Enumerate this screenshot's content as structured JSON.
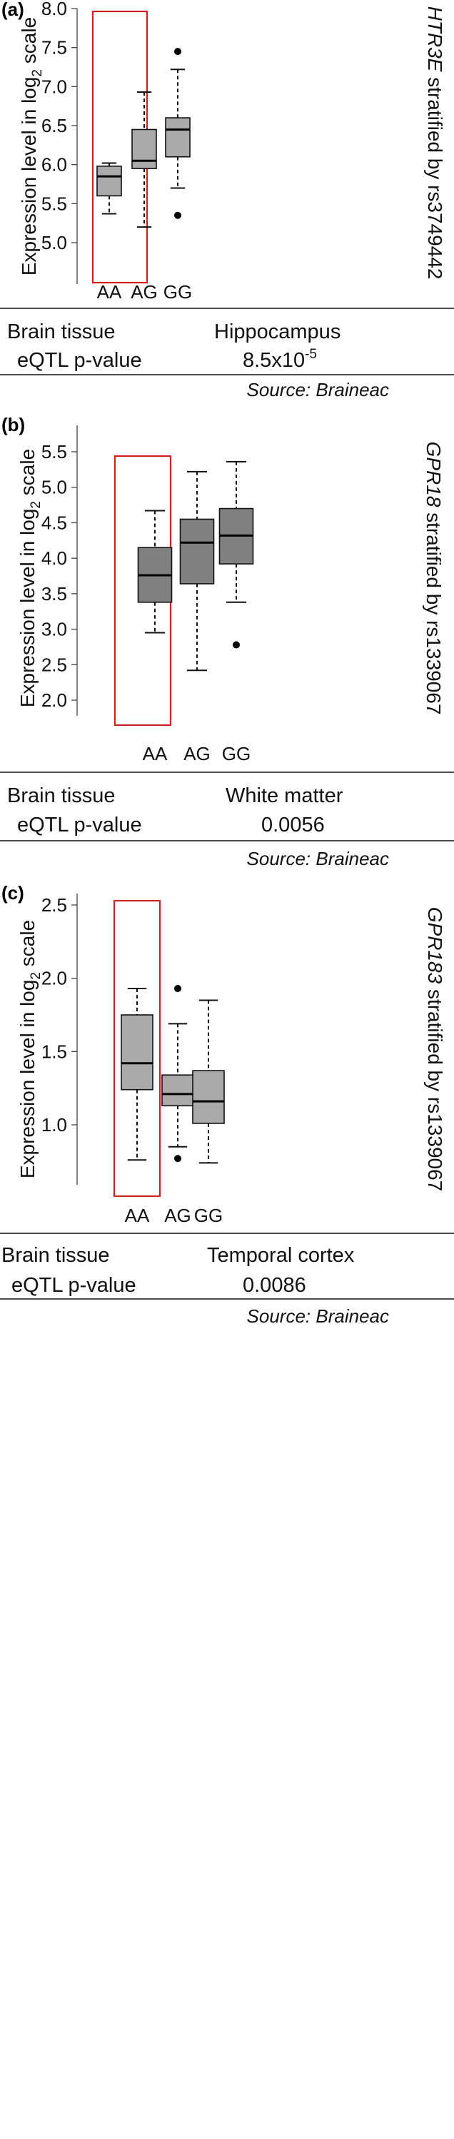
{
  "source_note": "Source: Braineac",
  "ylabel_prefix": "Expression level in log",
  "ylabel_sub": "2",
  "ylabel_suffix": " scale",
  "panels": [
    {
      "letter": "(a)",
      "gene": "HTR3E",
      "side_suffix": " stratified by rs3749442",
      "tissue_label": "Brain tissue",
      "tissue_value": "Hippocampus",
      "pval_label": "eQTL p-value",
      "pval_mantissa": "8.5x10",
      "pval_exponent": "-5",
      "box_color": "#aaaaaa",
      "highlight_color": "#cc2222",
      "chart_data": {
        "type": "box",
        "categories": [
          "AA",
          "AG",
          "GG"
        ],
        "ylim": [
          5.0,
          8.0
        ],
        "yticks": [
          "5.0",
          "5.5",
          "6.0",
          "6.5",
          "7.0",
          "7.5",
          "8.0"
        ],
        "highlighted_category": "AA",
        "boxes": [
          {
            "category": "AA",
            "whisker_low": 5.37,
            "q1": 5.6,
            "median": 5.85,
            "q3": 5.98,
            "whisker_high": 6.02,
            "outliers": []
          },
          {
            "category": "AG",
            "whisker_low": 5.2,
            "q1": 5.95,
            "median": 6.05,
            "q3": 6.45,
            "whisker_high": 6.93,
            "outliers": []
          },
          {
            "category": "GG",
            "whisker_low": 5.7,
            "q1": 6.1,
            "median": 6.45,
            "q3": 6.6,
            "whisker_high": 7.22,
            "outliers": [
              7.45,
              5.35
            ]
          }
        ]
      }
    },
    {
      "letter": "(b)",
      "gene": "GPR18",
      "side_suffix": " stratified by rs1339067",
      "tissue_label": "Brain tissue",
      "tissue_value": "White matter",
      "pval_label": "eQTL p-value",
      "pval_mantissa": "0.0056",
      "pval_exponent": "",
      "box_color": "#808080",
      "highlight_color": "#cc2222",
      "chart_data": {
        "type": "box",
        "categories": [
          "AA",
          "AG",
          "GG"
        ],
        "ylim": [
          1.9,
          5.5
        ],
        "yticks": [
          "2.0",
          "2.5",
          "3.0",
          "3.5",
          "4.0",
          "4.5",
          "5.0",
          "5.5"
        ],
        "highlighted_category": "AA",
        "boxes": [
          {
            "category": "AA",
            "whisker_low": 2.95,
            "q1": 3.38,
            "median": 3.76,
            "q3": 4.15,
            "whisker_high": 4.67,
            "outliers": []
          },
          {
            "category": "AG",
            "whisker_low": 2.42,
            "q1": 3.64,
            "median": 4.22,
            "q3": 4.55,
            "whisker_high": 5.22,
            "outliers": []
          },
          {
            "category": "GG",
            "whisker_low": 3.38,
            "q1": 3.92,
            "median": 4.32,
            "q3": 4.7,
            "whisker_high": 5.36,
            "outliers": [
              2.78
            ]
          }
        ]
      }
    },
    {
      "letter": "(c)",
      "gene": "GPR183",
      "side_suffix": " stratified by rs1339067",
      "tissue_label": "Brain tissue",
      "tissue_value": "Temporal cortex",
      "pval_label": "eQTL p-value",
      "pval_mantissa": "0.0086",
      "pval_exponent": "",
      "box_color": "#aaaaaa",
      "highlight_color": "#cc2222",
      "chart_data": {
        "type": "box",
        "categories": [
          "AA",
          "AG",
          "GG"
        ],
        "ylim": [
          0.7,
          2.5
        ],
        "yticks": [
          "1.0",
          "1.5",
          "2.0",
          "2.5"
        ],
        "highlighted_category": "AA",
        "boxes": [
          {
            "category": "AA",
            "whisker_low": 0.76,
            "q1": 1.24,
            "median": 1.42,
            "q3": 1.75,
            "whisker_high": 1.93,
            "outliers": []
          },
          {
            "category": "AG",
            "whisker_low": 0.85,
            "q1": 1.13,
            "median": 1.21,
            "q3": 1.34,
            "whisker_high": 1.69,
            "outliers": [
              1.93,
              0.77
            ]
          },
          {
            "category": "GG",
            "whisker_low": 0.74,
            "q1": 1.01,
            "median": 1.16,
            "q3": 1.37,
            "whisker_high": 1.85,
            "outliers": []
          }
        ]
      }
    }
  ]
}
